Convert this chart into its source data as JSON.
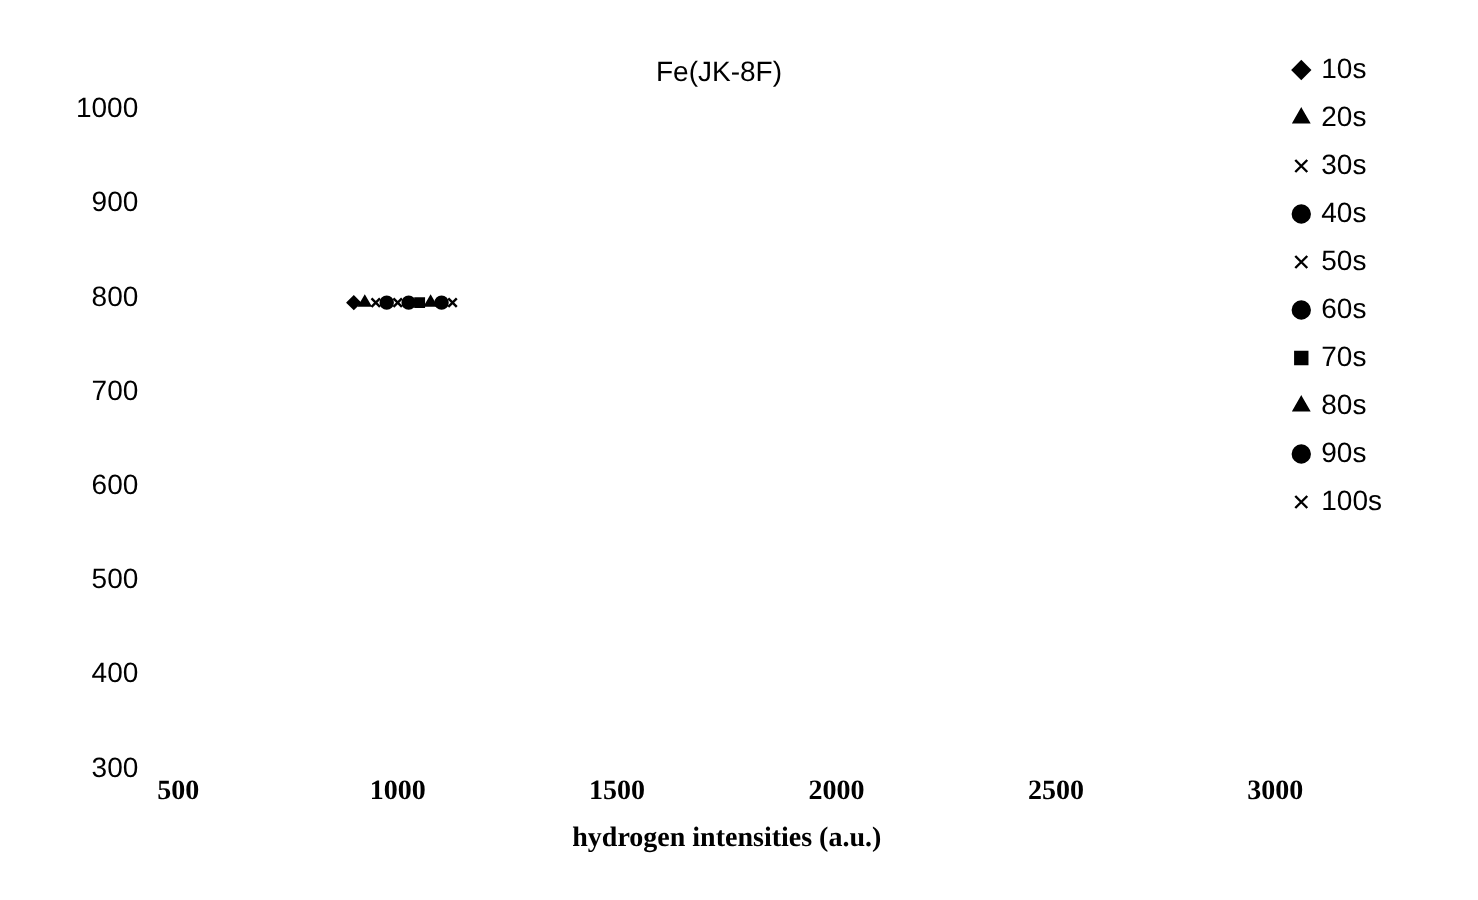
{
  "chart_data": {
    "type": "scatter",
    "title": "Fe(JK-8F)",
    "xlabel": "hydrogen intensities (a.u.)",
    "xlim": [
      500,
      3000
    ],
    "xticks": [
      500,
      1000,
      1500,
      2000,
      2500,
      3000
    ],
    "ylim": [
      300,
      1000
    ],
    "yticks": [
      300,
      400,
      500,
      600,
      700,
      800,
      900,
      1000
    ],
    "grid": false,
    "legend": "top right",
    "series": [
      {
        "name": "10s",
        "color": "#000000",
        "marker": "diamond",
        "x": [
          900
        ],
        "values": [
          795
        ]
      },
      {
        "name": "20s",
        "color": "#000000",
        "marker": "triangle",
        "x": [
          925
        ],
        "values": [
          795
        ]
      },
      {
        "name": "30s",
        "color": "#000000",
        "marker": "cross",
        "x": [
          950
        ],
        "values": [
          795
        ]
      },
      {
        "name": "40s",
        "color": "#000000",
        "marker": "circle",
        "x": [
          975
        ],
        "values": [
          795
        ]
      },
      {
        "name": "50s",
        "color": "#000000",
        "marker": "cross",
        "x": [
          1000
        ],
        "values": [
          795
        ]
      },
      {
        "name": "60s",
        "color": "#000000",
        "marker": "circle",
        "x": [
          1025
        ],
        "values": [
          795
        ]
      },
      {
        "name": "70s",
        "color": "#000000",
        "marker": "square",
        "x": [
          1050
        ],
        "values": [
          795
        ]
      },
      {
        "name": "80s",
        "color": "#000000",
        "marker": "triangle",
        "x": [
          1075
        ],
        "values": [
          795
        ]
      },
      {
        "name": "90s",
        "color": "#000000",
        "marker": "circle",
        "x": [
          1100
        ],
        "values": [
          795
        ]
      },
      {
        "name": "100s",
        "color": "#000000",
        "marker": "cross",
        "x": [
          1125
        ],
        "values": [
          795
        ]
      }
    ]
  }
}
